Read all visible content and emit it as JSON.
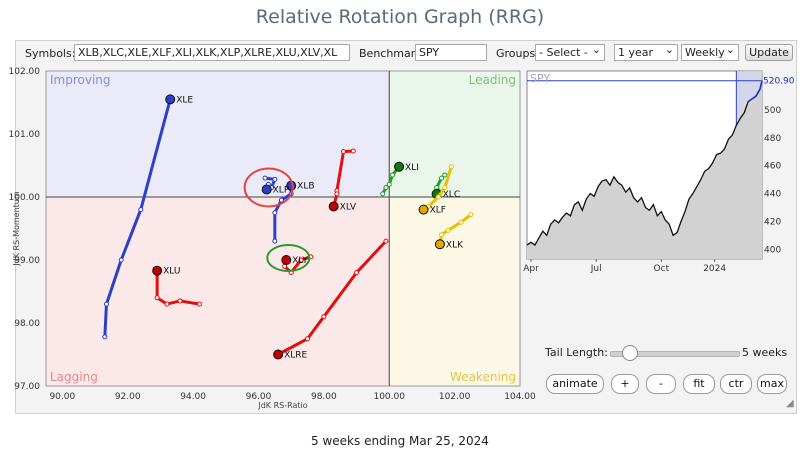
{
  "page": {
    "title": "Relative Rotation Graph (RRG)",
    "footer": "5 weeks ending Mar 25, 2024"
  },
  "controls": {
    "symbols_label": "Symbols:",
    "symbols_value": "XLB,XLC,XLE,XLF,XLI,XLK,XLP,XLRE,XLU,XLV,XL",
    "benchmark_label": "Benchmark:",
    "benchmark_value": "SPY",
    "groups_label": "Groups:",
    "groups_value": "- Select -",
    "period_value": "1 year",
    "interval_value": "Weekly",
    "update_label": "Update"
  },
  "tail": {
    "label": "Tail Length:",
    "value": "5 weeks",
    "weeks": 5
  },
  "buttons": {
    "animate": "animate",
    "plus": "+",
    "minus": "-",
    "fit": "fit",
    "ctr": "ctr",
    "max": "max"
  },
  "chart_data": [
    {
      "type": "scatter",
      "title": "",
      "xlabel": "JdK RS-Ratio",
      "ylabel": "JdK RS-Momentum",
      "xlim": [
        89.5,
        104
      ],
      "ylim": [
        97,
        102
      ],
      "xticks": [
        90,
        92,
        94,
        96,
        98,
        100,
        102,
        104
      ],
      "yticks": [
        97,
        98,
        99,
        100,
        101,
        102
      ],
      "xtick_labels": [
        "90.00",
        "92.00",
        "94.00",
        "96.00",
        "98.00",
        "100.00",
        "102.00",
        "104.00"
      ],
      "ytick_labels": [
        "97.00",
        "98.00",
        "99.00",
        "100.00",
        "101.00",
        "102.00"
      ],
      "center": [
        100,
        100
      ],
      "quadrants": [
        {
          "name": "Improving",
          "color": "#eaeaf8",
          "label_color": "#8a8ae0"
        },
        {
          "name": "Leading",
          "color": "#e9f6e9",
          "label_color": "#7fc07f"
        },
        {
          "name": "Lagging",
          "color": "#fbe9e9",
          "label_color": "#e08a8a"
        },
        {
          "name": "Weakening",
          "color": "#fbf8e6",
          "label_color": "#e2c44a"
        }
      ],
      "grid": false,
      "series": [
        {
          "name": "XLE",
          "color": "#2b40c8",
          "dot": "#2b40c8",
          "points": [
            [
              91.3,
              97.78
            ],
            [
              91.35,
              98.3
            ],
            [
              91.8,
              99.0
            ],
            [
              92.4,
              99.8
            ],
            [
              93.3,
              101.55
            ]
          ]
        },
        {
          "name": "XLB",
          "color": "#2b40c8",
          "dot": "#2b40c8",
          "points": [
            [
              96.5,
              99.3
            ],
            [
              96.5,
              99.75
            ],
            [
              96.7,
              99.95
            ],
            [
              97.0,
              100.05
            ],
            [
              97.0,
              100.18
            ]
          ]
        },
        {
          "name": "XLP",
          "color": "#2b40c8",
          "dot": "#2b40c8",
          "points": [
            [
              96.2,
              100.3
            ],
            [
              96.5,
              100.28
            ],
            [
              96.4,
              100.15
            ],
            [
              96.3,
              100.2
            ],
            [
              96.25,
              100.12
            ]
          ]
        },
        {
          "name": "XLU",
          "color": "#e01010",
          "dot": "#c00000",
          "points": [
            [
              94.2,
              98.3
            ],
            [
              93.6,
              98.35
            ],
            [
              93.2,
              98.3
            ],
            [
              92.9,
              98.4
            ],
            [
              92.9,
              98.83
            ]
          ]
        },
        {
          "name": "XLY",
          "color": "#e01010",
          "dot": "#c00000",
          "points": [
            [
              97.6,
              99.05
            ],
            [
              97.3,
              99.0
            ],
            [
              97.0,
              98.8
            ],
            [
              96.8,
              98.9
            ],
            [
              96.85,
              99.0
            ]
          ]
        },
        {
          "name": "XLV",
          "color": "#e01010",
          "dot": "#c00000",
          "points": [
            [
              98.9,
              100.73
            ],
            [
              98.6,
              100.72
            ],
            [
              98.4,
              100.1
            ],
            [
              98.4,
              100.05
            ],
            [
              98.3,
              99.85
            ]
          ]
        },
        {
          "name": "XLRE",
          "color": "#e01010",
          "dot": "#c00000",
          "points": [
            [
              99.9,
              99.3
            ],
            [
              99.0,
              98.8
            ],
            [
              98.0,
              98.1
            ],
            [
              97.5,
              97.75
            ],
            [
              96.6,
              97.5
            ]
          ]
        },
        {
          "name": "XLI",
          "color": "#22a022",
          "dot": "#0f7a0f",
          "points": [
            [
              99.8,
              100.05
            ],
            [
              99.9,
              100.15
            ],
            [
              100.0,
              100.2
            ],
            [
              100.1,
              100.35
            ],
            [
              100.3,
              100.48
            ]
          ]
        },
        {
          "name": "XLC",
          "color": "#22a022",
          "dot": "#0f7a0f",
          "points": [
            [
              101.7,
              100.35
            ],
            [
              101.6,
              100.3
            ],
            [
              101.45,
              100.15
            ],
            [
              101.5,
              100.1
            ],
            [
              101.45,
              100.05
            ]
          ]
        },
        {
          "name": "XLF",
          "color": "#e8c000",
          "dot": "#e0a800",
          "points": [
            [
              101.9,
              100.48
            ],
            [
              101.7,
              100.15
            ],
            [
              101.5,
              100.0
            ],
            [
              101.2,
              99.85
            ],
            [
              101.05,
              99.8
            ]
          ]
        },
        {
          "name": "XLK",
          "color": "#e8c000",
          "dot": "#e0a800",
          "points": [
            [
              102.5,
              99.72
            ],
            [
              102.2,
              99.6
            ],
            [
              101.8,
              99.47
            ],
            [
              101.6,
              99.4
            ],
            [
              101.55,
              99.25
            ]
          ]
        }
      ],
      "annotations": [
        {
          "shape": "ellipse",
          "color": "#e04444",
          "target": "XLP"
        },
        {
          "shape": "ellipse",
          "color": "#2a9a2a",
          "target": "XLY"
        }
      ]
    },
    {
      "type": "area",
      "title": "SPY",
      "last_value_label": "520.90",
      "xtick_labels": [
        "Apr",
        "Jul",
        "Oct",
        "2024"
      ],
      "yticks": [
        400,
        420,
        440,
        460,
        480,
        500
      ],
      "ytick_labels": [
        "400",
        "420",
        "440",
        "460",
        "480",
        "500"
      ],
      "ylim": [
        393,
        528
      ],
      "x": [
        0,
        4,
        8,
        12,
        16,
        20,
        24,
        28,
        32,
        36,
        40,
        44,
        48,
        52,
        56,
        60,
        64,
        68,
        72,
        76,
        80,
        84,
        88,
        92,
        96,
        100,
        104,
        108,
        112,
        116,
        120,
        124,
        128,
        132,
        136,
        140,
        144,
        148,
        152,
        156,
        160,
        164,
        168,
        172,
        176,
        180,
        184,
        188,
        192,
        196,
        200,
        204,
        208,
        212,
        216,
        220,
        224,
        228
      ],
      "values": [
        403,
        405,
        403,
        408,
        413,
        410,
        418,
        421,
        419,
        423,
        426,
        424,
        432,
        434,
        428,
        436,
        440,
        438,
        445,
        449,
        450,
        446,
        452,
        448,
        446,
        441,
        444,
        437,
        434,
        437,
        430,
        428,
        432,
        424,
        427,
        421,
        418,
        410,
        412,
        420,
        427,
        436,
        440,
        445,
        450,
        456,
        458,
        462,
        468,
        469,
        472,
        479,
        482,
        489,
        494,
        498,
        506,
        508
      ],
      "end_values": [
        [
          228,
          508
        ],
        [
          232,
          510
        ],
        [
          236,
          515
        ],
        [
          238,
          521
        ]
      ],
      "highlight": "last 5 weeks"
    }
  ]
}
